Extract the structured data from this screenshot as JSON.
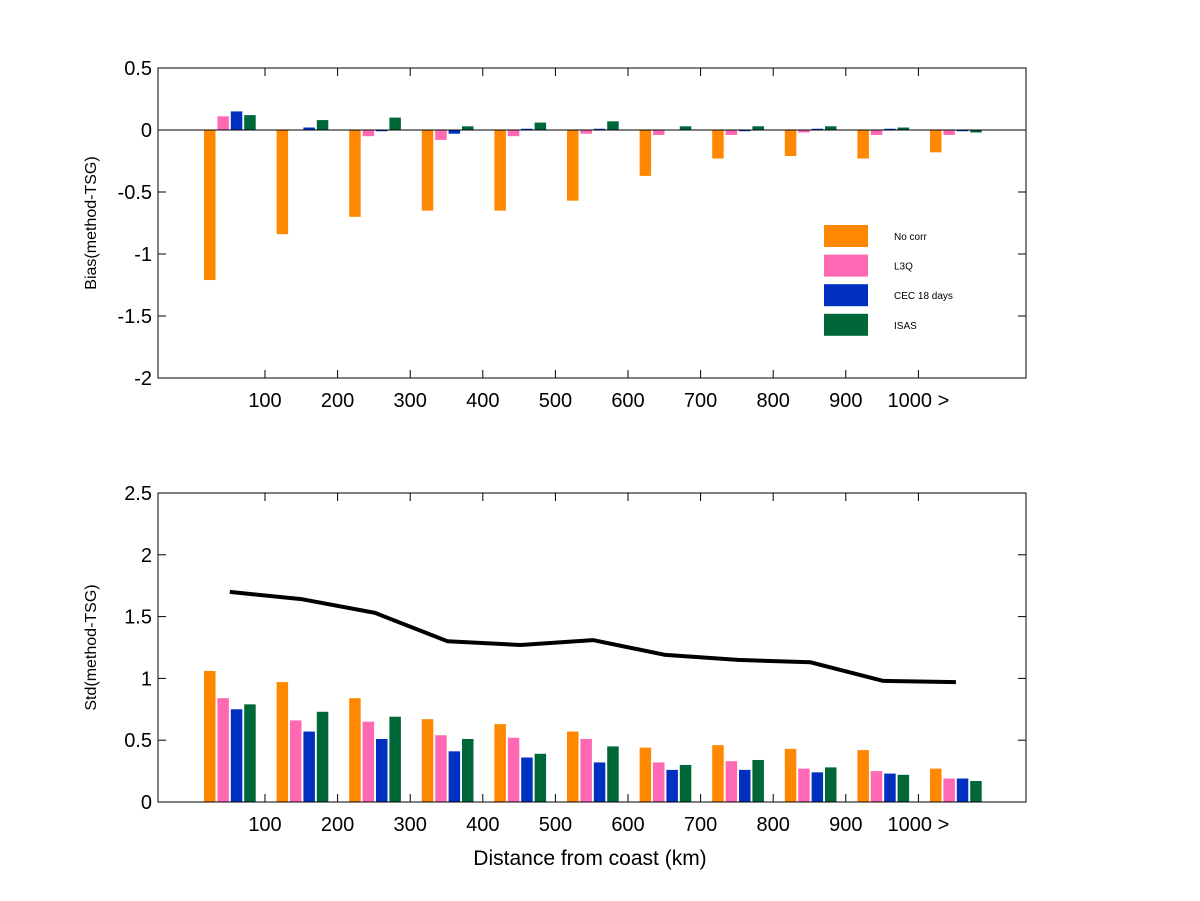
{
  "colors": {
    "No corr": "#ff8800",
    "L3Q": "#ff69b4",
    "CEC 18 days": "#0030c0",
    "ISAS": "#006838",
    "line": "#000000"
  },
  "chart_data": [
    {
      "type": "bar",
      "ylabel": "Bias(method-TSG)",
      "xlabel": "",
      "ylim": [
        -2,
        0.5
      ],
      "yticks": [
        "-2",
        "-1.5",
        "-1",
        "-0.5",
        "0",
        "0.5"
      ],
      "xtick_labels": [
        "100",
        "200",
        "300",
        "400",
        "500",
        "600",
        "700",
        "800",
        "900",
        "1000 >"
      ],
      "zero_line": true,
      "legend": {
        "placement": "right",
        "entries": [
          "No corr",
          "L3Q",
          "CEC 18 days",
          "ISAS"
        ]
      },
      "series": [
        {
          "name": "No corr",
          "values": [
            -1.21,
            -0.84,
            -0.7,
            -0.65,
            -0.65,
            -0.57,
            -0.37,
            -0.23,
            -0.21,
            -0.23,
            -0.18
          ]
        },
        {
          "name": "L3Q",
          "values": [
            0.11,
            0.0,
            -0.05,
            -0.08,
            -0.05,
            -0.03,
            -0.04,
            -0.04,
            -0.02,
            -0.04,
            -0.04
          ]
        },
        {
          "name": "CEC 18 days",
          "values": [
            0.15,
            0.02,
            -0.01,
            -0.03,
            0.01,
            0.01,
            0.0,
            -0.01,
            0.01,
            0.01,
            -0.01
          ]
        },
        {
          "name": "ISAS",
          "values": [
            0.12,
            0.08,
            0.1,
            0.03,
            0.06,
            0.07,
            0.03,
            0.03,
            0.03,
            0.02,
            -0.02
          ]
        }
      ]
    },
    {
      "type": "bar",
      "ylabel": "Std(method-TSG)",
      "xlabel": "Distance from coast (km)",
      "ylim": [
        0,
        2.5
      ],
      "yticks": [
        "0",
        "0.5",
        "1",
        "1.5",
        "2",
        "2.5"
      ],
      "xtick_labels": [
        "100",
        "200",
        "300",
        "400",
        "500",
        "600",
        "700",
        "800",
        "900",
        "1000 >"
      ],
      "series": [
        {
          "name": "No corr",
          "values": [
            1.06,
            0.97,
            0.84,
            0.67,
            0.63,
            0.57,
            0.44,
            0.46,
            0.43,
            0.42,
            0.27
          ]
        },
        {
          "name": "L3Q",
          "values": [
            0.84,
            0.66,
            0.65,
            0.54,
            0.52,
            0.51,
            0.32,
            0.33,
            0.27,
            0.25,
            0.19
          ]
        },
        {
          "name": "CEC 18 days",
          "values": [
            0.75,
            0.57,
            0.51,
            0.41,
            0.36,
            0.32,
            0.26,
            0.26,
            0.24,
            0.23,
            0.19
          ]
        },
        {
          "name": "ISAS",
          "values": [
            0.79,
            0.73,
            0.69,
            0.51,
            0.39,
            0.45,
            0.3,
            0.34,
            0.28,
            0.22,
            0.17
          ]
        }
      ],
      "line": {
        "values": [
          1.7,
          1.64,
          1.53,
          1.3,
          1.27,
          1.31,
          1.19,
          1.15,
          1.13,
          0.98,
          0.97
        ]
      }
    }
  ]
}
